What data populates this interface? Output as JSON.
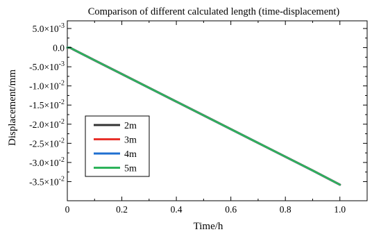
{
  "chart_data": {
    "type": "line",
    "title": "Comparison of different calculated length (time-displacement)",
    "xlabel": "Time/h",
    "ylabel": "Displacement/mm",
    "xlim": [
      0,
      1.1
    ],
    "ylim": [
      -0.04,
      0.007
    ],
    "x_ticks": [
      0,
      0.2,
      0.4,
      0.6,
      0.8,
      1.0
    ],
    "x_tick_labels": [
      "0",
      "0.2",
      "0.4",
      "0.6",
      "0.8",
      "1.0"
    ],
    "y_ticks": [
      0.005,
      0.0,
      -0.005,
      -0.01,
      -0.015,
      -0.02,
      -0.025,
      -0.03,
      -0.035
    ],
    "y_tick_labels": [
      {
        "m": "5.0",
        "e": "-3"
      },
      {
        "m": "0.0",
        "e": ""
      },
      {
        "m": "-5.0",
        "e": "-3"
      },
      {
        "m": "-1.0",
        "e": "-2"
      },
      {
        "m": "-1.5",
        "e": "-2"
      },
      {
        "m": "-2.0",
        "e": "-2"
      },
      {
        "m": "-2.5",
        "e": "-2"
      },
      {
        "m": "-3.0",
        "e": "-2"
      },
      {
        "m": "-3.5",
        "e": "-2"
      }
    ],
    "grid": false,
    "legend_position": "bottom-left",
    "series": [
      {
        "name": "2m",
        "color": "#333333",
        "x": [
          0,
          0.01,
          0.02,
          0.05,
          0.1,
          0.2,
          0.3,
          0.4,
          0.5,
          0.6,
          0.7,
          0.8,
          0.9,
          1.0
        ],
        "y": [
          0.0,
          0.0,
          -0.0004,
          -0.0015,
          -0.0033,
          -0.0069,
          -0.0105,
          -0.0141,
          -0.0177,
          -0.0213,
          -0.0249,
          -0.0285,
          -0.0321,
          -0.0358
        ]
      },
      {
        "name": "3m",
        "color": "#e8312a",
        "x": [
          0,
          0.01,
          0.02,
          0.05,
          0.1,
          0.2,
          0.3,
          0.4,
          0.5,
          0.6,
          0.7,
          0.8,
          0.9,
          1.0
        ],
        "y": [
          0.0,
          0.0,
          -0.0004,
          -0.0015,
          -0.0033,
          -0.0069,
          -0.0105,
          -0.0141,
          -0.0177,
          -0.0213,
          -0.0249,
          -0.0285,
          -0.0321,
          -0.0358
        ]
      },
      {
        "name": "4m",
        "color": "#1f6fd0",
        "x": [
          0,
          0.01,
          0.02,
          0.05,
          0.1,
          0.2,
          0.3,
          0.4,
          0.5,
          0.6,
          0.7,
          0.8,
          0.9,
          1.0
        ],
        "y": [
          0.0,
          0.0,
          -0.0004,
          -0.0015,
          -0.0033,
          -0.0069,
          -0.0105,
          -0.0141,
          -0.0177,
          -0.0213,
          -0.0249,
          -0.0285,
          -0.0321,
          -0.0358
        ]
      },
      {
        "name": "5m",
        "color": "#2db35a",
        "x": [
          0,
          0.01,
          0.02,
          0.05,
          0.1,
          0.2,
          0.3,
          0.4,
          0.5,
          0.6,
          0.7,
          0.8,
          0.9,
          1.0
        ],
        "y": [
          0.0,
          0.0,
          -0.0004,
          -0.0015,
          -0.0033,
          -0.0069,
          -0.0105,
          -0.0141,
          -0.0177,
          -0.0213,
          -0.0249,
          -0.0285,
          -0.0321,
          -0.0358
        ]
      }
    ]
  }
}
